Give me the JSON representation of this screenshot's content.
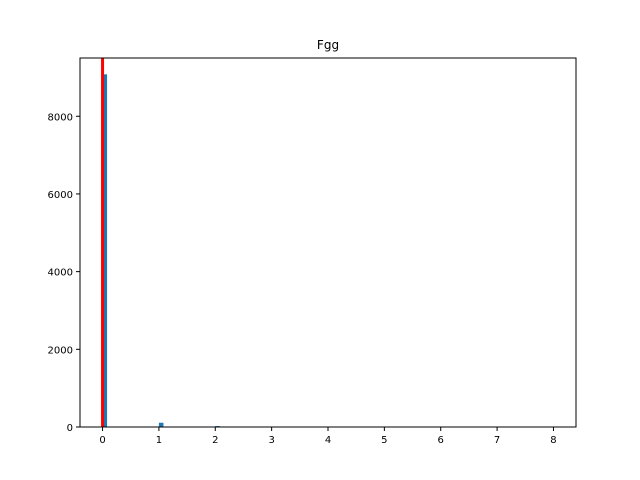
{
  "chart_data": {
    "type": "bar",
    "title": "Fgg",
    "xlabel": "",
    "ylabel": "",
    "xlim": [
      -0.4,
      8.4
    ],
    "ylim": [
      0,
      9500
    ],
    "x_ticks": [
      0,
      1,
      2,
      3,
      4,
      5,
      6,
      7,
      8
    ],
    "y_ticks": [
      0,
      2000,
      4000,
      6000,
      8000
    ],
    "bin_width": 0.08,
    "bars": [
      {
        "x": 0.0,
        "value": 9080
      },
      {
        "x": 1.0,
        "value": 110
      },
      {
        "x": 2.0,
        "value": 25
      }
    ],
    "vline": {
      "x": 0.0,
      "color": "#ff0000"
    },
    "bar_color": "#1f77b4",
    "grid": false
  }
}
